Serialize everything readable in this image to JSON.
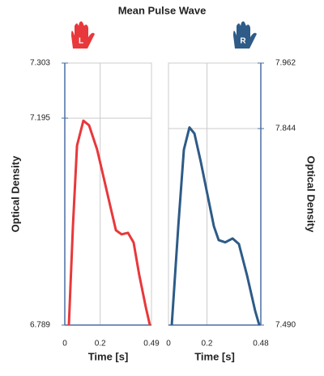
{
  "title": "Mean Pulse Wave",
  "chart_data": [
    {
      "type": "line",
      "hand_label": "L",
      "y_label": "Optical Density",
      "x_label": "Time [s]",
      "xlim": [
        0,
        0.49
      ],
      "xticks": [
        0,
        0.2,
        0.49
      ],
      "ylim": [
        6.789,
        7.303
      ],
      "yticks": [
        6.789,
        7.195,
        7.303
      ],
      "grid": true,
      "x": [
        0.023,
        0.046,
        0.069,
        0.105,
        0.137,
        0.183,
        0.22,
        0.252,
        0.289,
        0.321,
        0.357,
        0.389,
        0.421,
        0.458,
        0.481
      ],
      "series": [
        {
          "color": "#e8383b",
          "values": [
            6.789,
            6.983,
            7.141,
            7.19,
            7.181,
            7.133,
            7.078,
            7.03,
            6.975,
            6.967,
            6.97,
            6.951,
            6.887,
            6.824,
            6.789
          ]
        }
      ]
    },
    {
      "type": "line",
      "hand_label": "R",
      "y_label": "Optical Density",
      "x_label": "Time [s]",
      "xlim": [
        0,
        0.48
      ],
      "xticks": [
        0,
        0.2,
        0.48
      ],
      "ylim": [
        7.49,
        7.962
      ],
      "yticks": [
        {
          "value": 7.49,
          "label": "7.490"
        },
        7.844,
        7.962
      ],
      "grid": true,
      "x": [
        0.017,
        0.051,
        0.08,
        0.109,
        0.135,
        0.168,
        0.202,
        0.236,
        0.261,
        0.295,
        0.333,
        0.366,
        0.408,
        0.451,
        0.472
      ],
      "series": [
        {
          "color": "#2e5b87",
          "values": [
            7.49,
            7.668,
            7.806,
            7.846,
            7.835,
            7.784,
            7.726,
            7.668,
            7.643,
            7.639,
            7.646,
            7.636,
            7.58,
            7.515,
            7.49
          ]
        }
      ]
    }
  ]
}
